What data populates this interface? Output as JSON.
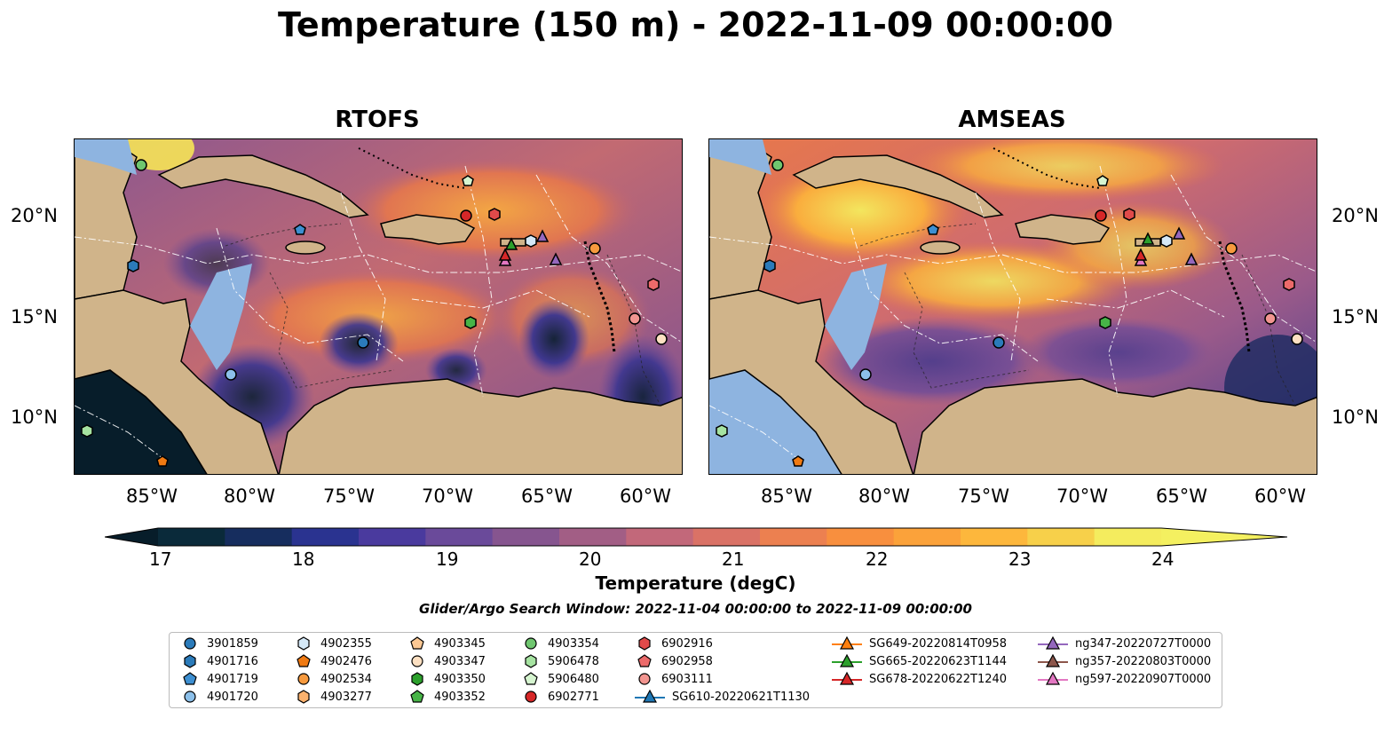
{
  "title": "Temperature (150 m) - 2022-11-09 00:00:00",
  "panels": [
    {
      "name": "RTOFS"
    },
    {
      "name": "AMSEAS"
    }
  ],
  "lat_labels": [
    "20°N",
    "15°N",
    "10°N"
  ],
  "lon_labels": [
    "85°W",
    "80°W",
    "75°W",
    "70°W",
    "65°W",
    "60°W"
  ],
  "colorbar": {
    "label": "Temperature (degC)",
    "ticks": [
      "17",
      "18",
      "19",
      "20",
      "21",
      "22",
      "23",
      "24"
    ],
    "colors": [
      "#0a2a3a",
      "#162d5e",
      "#2a3390",
      "#4a3a9e",
      "#6a4a9a",
      "#86558f",
      "#a25e85",
      "#c2687a",
      "#da7266",
      "#ec8050",
      "#f88f3e",
      "#fba23a",
      "#fdb73c",
      "#f7d04a",
      "#f4ec5e"
    ],
    "under_color": "#071d2a",
    "over_color": "#f4f060"
  },
  "search_window": "Glider/Argo Search Window: 2022-11-04 00:00:00 to 2022-11-09 00:00:00",
  "legend": [
    {
      "label": "3901859",
      "marker": "circle",
      "color": "#2b7bba"
    },
    {
      "label": "4901716",
      "marker": "hexagon",
      "color": "#2b7bba"
    },
    {
      "label": "4901719",
      "marker": "pentagon",
      "color": "#3d8fd1"
    },
    {
      "label": "4901720",
      "marker": "circle",
      "color": "#8cc0ea"
    },
    {
      "label": "4902355",
      "marker": "hexagon",
      "color": "#d4e8f7"
    },
    {
      "label": "4902476",
      "marker": "pentagon",
      "color": "#f07a12"
    },
    {
      "label": "4902534",
      "marker": "circle",
      "color": "#f79a3e"
    },
    {
      "label": "4903277",
      "marker": "hexagon",
      "color": "#fbb26e"
    },
    {
      "label": "4903345",
      "marker": "pentagon",
      "color": "#fcc894"
    },
    {
      "label": "4903347",
      "marker": "circle",
      "color": "#fde0c2"
    },
    {
      "label": "4903350",
      "marker": "hexagon",
      "color": "#2ca02c"
    },
    {
      "label": "4903352",
      "marker": "pentagon",
      "color": "#47b447"
    },
    {
      "label": "4903354",
      "marker": "circle",
      "color": "#6fc66f"
    },
    {
      "label": "5906478",
      "marker": "hexagon",
      "color": "#a6e3a1"
    },
    {
      "label": "5906480",
      "marker": "pentagon",
      "color": "#d6f5d0"
    },
    {
      "label": "6902771",
      "marker": "circle",
      "color": "#d62728"
    },
    {
      "label": "6902916",
      "marker": "hexagon",
      "color": "#e04a4a"
    },
    {
      "label": "6902958",
      "marker": "pentagon",
      "color": "#ec6a6a"
    },
    {
      "label": "6903111",
      "marker": "circle",
      "color": "#f29590"
    },
    {
      "label": "SG610-20220621T1130",
      "marker": "triangle-line",
      "color": "#1f77b4"
    },
    {
      "label": "SG649-20220814T0958",
      "marker": "triangle-line",
      "color": "#ff7f0e"
    },
    {
      "label": "SG665-20220623T1144",
      "marker": "triangle-line",
      "color": "#2ca02c"
    },
    {
      "label": "SG678-20220622T1240",
      "marker": "triangle-line",
      "color": "#d62728"
    },
    {
      "label": "ng347-20220727T0000",
      "marker": "triangle-line",
      "color": "#9467bd"
    },
    {
      "label": "ng357-20220803T0000",
      "marker": "triangle-line",
      "color": "#8c564b"
    },
    {
      "label": "ng597-20220907T0000",
      "marker": "triangle-line",
      "color": "#e377c2"
    }
  ]
}
